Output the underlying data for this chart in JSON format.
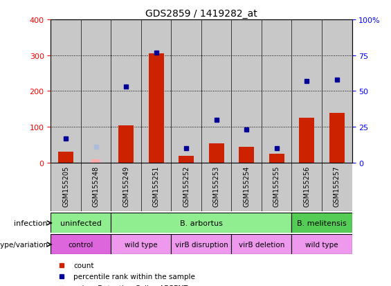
{
  "title": "GDS2859 / 1419282_at",
  "samples": [
    "GSM155205",
    "GSM155248",
    "GSM155249",
    "GSM155251",
    "GSM155252",
    "GSM155253",
    "GSM155254",
    "GSM155255",
    "GSM155256",
    "GSM155257"
  ],
  "count_values": [
    30,
    null,
    105,
    305,
    20,
    55,
    45,
    25,
    125,
    140
  ],
  "count_absent": [
    null,
    10,
    null,
    null,
    null,
    null,
    null,
    null,
    null,
    null
  ],
  "rank_values": [
    17,
    null,
    53,
    77,
    10,
    30,
    23,
    10,
    57,
    58
  ],
  "rank_absent": [
    null,
    11,
    null,
    null,
    null,
    null,
    null,
    null,
    null,
    null
  ],
  "infection_groups": [
    {
      "label": "uninfected",
      "start": 0,
      "end": 2,
      "color": "#90EE90"
    },
    {
      "label": "B. arbortus",
      "start": 2,
      "end": 8,
      "color": "#90EE90"
    },
    {
      "label": "B. melitensis",
      "start": 8,
      "end": 10,
      "color": "#55CC55"
    }
  ],
  "genotype_groups": [
    {
      "label": "control",
      "start": 0,
      "end": 2,
      "color": "#DD66DD"
    },
    {
      "label": "wild type",
      "start": 2,
      "end": 4,
      "color": "#EE99EE"
    },
    {
      "label": "virB disruption",
      "start": 4,
      "end": 6,
      "color": "#EE99EE"
    },
    {
      "label": "virB deletion",
      "start": 6,
      "end": 8,
      "color": "#EE99EE"
    },
    {
      "label": "wild type",
      "start": 8,
      "end": 10,
      "color": "#EE99EE"
    }
  ],
  "ylim_left": [
    0,
    400
  ],
  "ylim_right": [
    0,
    100
  ],
  "yticks_left": [
    0,
    100,
    200,
    300,
    400
  ],
  "yticks_right": [
    0,
    25,
    50,
    75,
    100
  ],
  "bar_color": "#CC2200",
  "rank_color": "#000099",
  "rank_absent_color": "#AABBDD",
  "count_absent_color": "#FFAAAA",
  "background_color": "#ffffff"
}
